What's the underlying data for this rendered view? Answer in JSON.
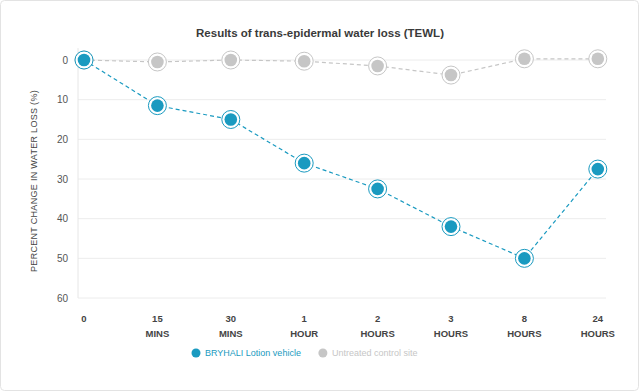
{
  "chart_data": {
    "type": "line",
    "title": "Results of trans-epidermal water loss (TEWL)",
    "y_label": "PERCENT CHANGE IN WATER LOSS (%)",
    "categories": [
      "0",
      "15 MINS",
      "30 MINS",
      "1 HOUR",
      "2 HOURS",
      "3 HOURS",
      "8 HOURS",
      "24 HOURS"
    ],
    "series": [
      {
        "name": "BRYHALI Lotion vehicle",
        "color": "#1a9ac0",
        "values": [
          0,
          11.5,
          15,
          26,
          32.5,
          42,
          50,
          27.5
        ],
        "marker": "circle",
        "line_style": "dashed"
      },
      {
        "name": "Untreated control site",
        "color": "#c6c6c6",
        "values": [
          0,
          0.5,
          0,
          0.3,
          1.5,
          3.8,
          -0.3,
          -0.3
        ],
        "marker": "circle",
        "line_style": "dashed"
      }
    ],
    "ylim": [
      -3,
      60
    ],
    "yticks": [
      0,
      10,
      20,
      30,
      40,
      50,
      60
    ],
    "grid": true,
    "legend": "bottom"
  }
}
